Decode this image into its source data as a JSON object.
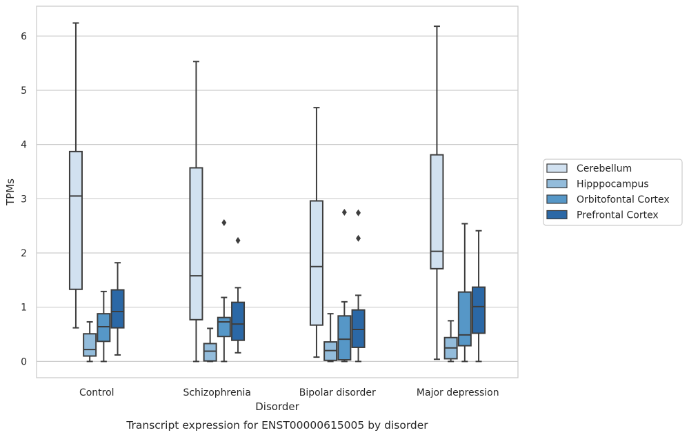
{
  "chart_data": {
    "type": "box",
    "caption": "Transcript expression for ENST00000615005 by disorder",
    "xlabel": "Disorder",
    "ylabel": "TPMs",
    "ylim": [
      -0.3,
      6.55
    ],
    "yticks": [
      0,
      1,
      2,
      3,
      4,
      5,
      6
    ],
    "grid": "horizontal",
    "legend_position": "right",
    "categories": [
      "Control",
      "Schizophrenia",
      "Bipolar disorder",
      "Major depression"
    ],
    "series": [
      {
        "name": "Cerebellum",
        "color": "#d1e1f0",
        "boxes": [
          {
            "whislo": 0.62,
            "q1": 1.33,
            "med": 3.05,
            "q3": 3.87,
            "whishi": 6.24,
            "fliers": []
          },
          {
            "whislo": 0.0,
            "q1": 0.77,
            "med": 1.58,
            "q3": 3.57,
            "whishi": 5.53,
            "fliers": []
          },
          {
            "whislo": 0.08,
            "q1": 0.67,
            "med": 1.75,
            "q3": 2.96,
            "whishi": 4.68,
            "fliers": []
          },
          {
            "whislo": 0.04,
            "q1": 1.71,
            "med": 2.03,
            "q3": 3.81,
            "whishi": 6.18,
            "fliers": []
          }
        ]
      },
      {
        "name": "Hipppocampus",
        "color": "#93bcdb",
        "boxes": [
          {
            "whislo": 0.0,
            "q1": 0.1,
            "med": 0.22,
            "q3": 0.51,
            "whishi": 0.73,
            "fliers": []
          },
          {
            "whislo": 0.0,
            "q1": 0.01,
            "med": 0.19,
            "q3": 0.33,
            "whishi": 0.61,
            "fliers": []
          },
          {
            "whislo": 0.0,
            "q1": 0.02,
            "med": 0.2,
            "q3": 0.36,
            "whishi": 0.88,
            "fliers": []
          },
          {
            "whislo": 0.0,
            "q1": 0.05,
            "med": 0.25,
            "q3": 0.44,
            "whishi": 0.75,
            "fliers": []
          }
        ]
      },
      {
        "name": "Orbitofontal Cortex",
        "color": "#5697c7",
        "boxes": [
          {
            "whislo": 0.0,
            "q1": 0.37,
            "med": 0.64,
            "q3": 0.88,
            "whishi": 1.29,
            "fliers": []
          },
          {
            "whislo": 0.0,
            "q1": 0.46,
            "med": 0.73,
            "q3": 0.81,
            "whishi": 1.18,
            "fliers": [
              2.56
            ]
          },
          {
            "whislo": 0.0,
            "q1": 0.03,
            "med": 0.41,
            "q3": 0.84,
            "whishi": 1.1,
            "fliers": [
              2.75
            ]
          },
          {
            "whislo": 0.0,
            "q1": 0.29,
            "med": 0.49,
            "q3": 1.28,
            "whishi": 2.54,
            "fliers": []
          }
        ]
      },
      {
        "name": "Prefrontal Cortex",
        "color": "#2b68a6",
        "boxes": [
          {
            "whislo": 0.12,
            "q1": 0.62,
            "med": 0.92,
            "q3": 1.32,
            "whishi": 1.82,
            "fliers": []
          },
          {
            "whislo": 0.16,
            "q1": 0.39,
            "med": 0.69,
            "q3": 1.09,
            "whishi": 1.36,
            "fliers": [
              2.23
            ]
          },
          {
            "whislo": 0.0,
            "q1": 0.26,
            "med": 0.59,
            "q3": 0.95,
            "whishi": 1.22,
            "fliers": [
              2.27,
              2.74
            ]
          },
          {
            "whislo": 0.0,
            "q1": 0.52,
            "med": 1.01,
            "q3": 1.37,
            "whishi": 2.41,
            "fliers": []
          }
        ]
      }
    ]
  }
}
